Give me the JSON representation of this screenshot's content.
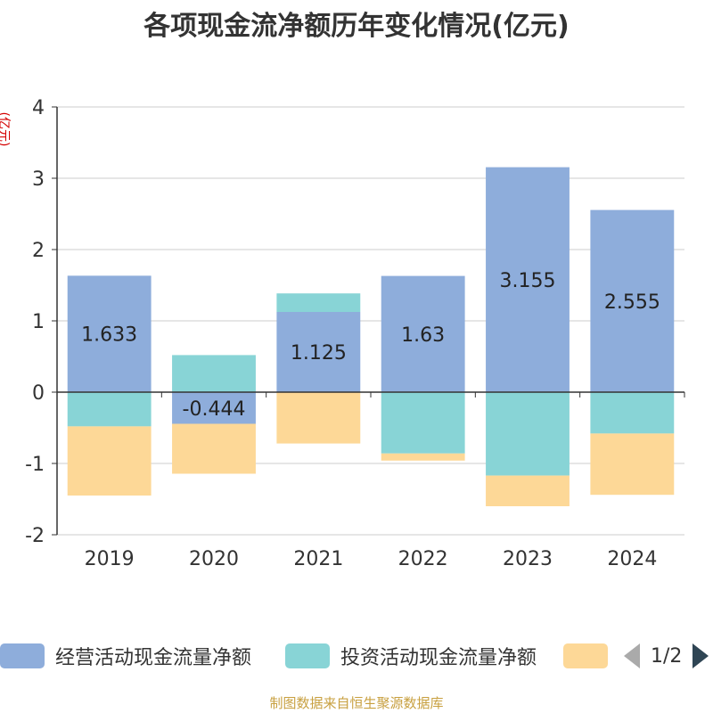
{
  "chart_data": {
    "type": "bar",
    "stacked": true,
    "title": "各项现金流净额历年变化情况(亿元)",
    "ylabel": "(亿元)",
    "categories": [
      "2019",
      "2020",
      "2021",
      "2022",
      "2023",
      "2024"
    ],
    "ylim": [
      -2,
      4
    ],
    "yticks": [
      -2,
      -1,
      0,
      1,
      2,
      3,
      4
    ],
    "grid": true,
    "legend_position": "bottom",
    "series": [
      {
        "name": "经营活动现金流量净额",
        "color": "#8eaddb",
        "values": [
          1.633,
          -0.444,
          1.125,
          1.63,
          3.155,
          2.555
        ],
        "data_labels": [
          "1.633",
          "-0.444",
          "1.125",
          "1.63",
          "3.155",
          "2.555"
        ]
      },
      {
        "name": "投资活动现金流量净额",
        "color": "#88d4d6",
        "values": [
          -0.48,
          0.52,
          0.26,
          -0.86,
          -1.17,
          -0.58
        ]
      },
      {
        "name": "",
        "color": "#fdd897",
        "values": [
          -0.97,
          -0.7,
          -0.72,
          -0.1,
          -0.43,
          -0.86
        ]
      }
    ]
  },
  "legend": {
    "item1": "经营活动现金流量净额",
    "item2": "投资活动现金流量净额",
    "page": "1/2"
  },
  "footer": "制图数据来自恒生聚源数据库"
}
